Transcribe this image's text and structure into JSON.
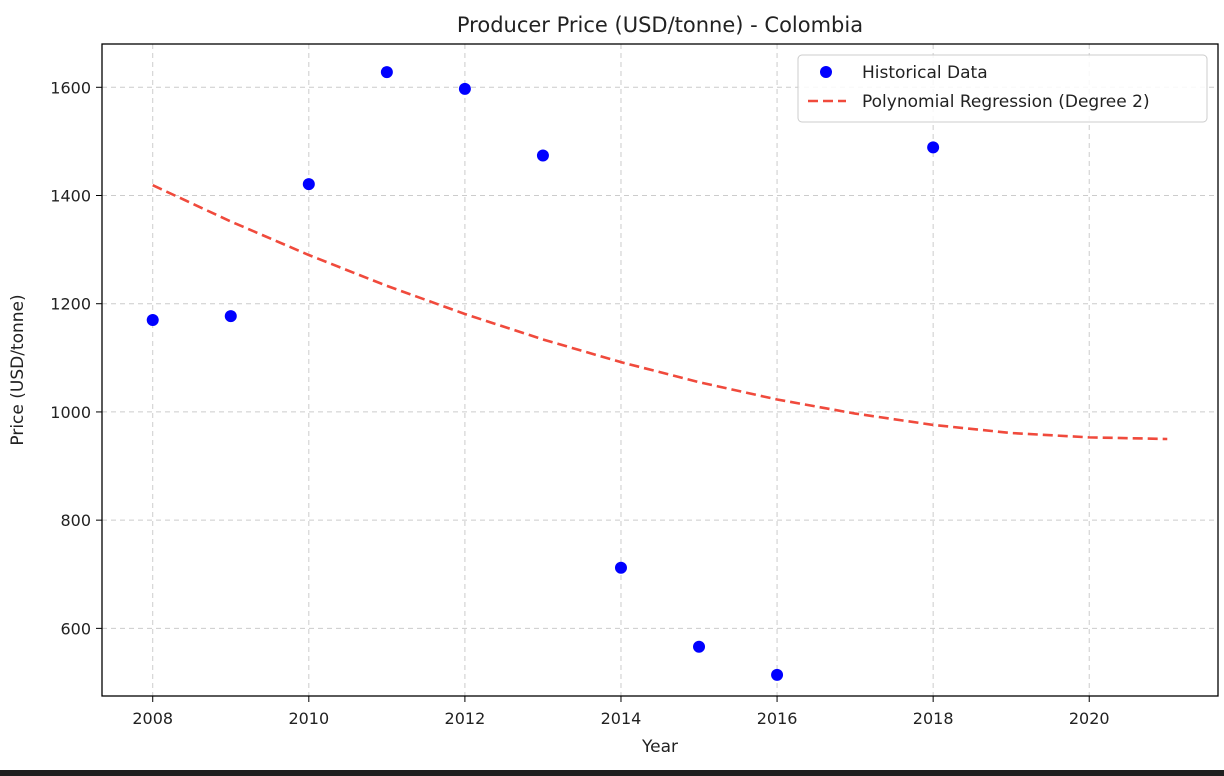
{
  "chart_data": {
    "type": "scatter",
    "title": "Producer Price (USD/tonne) - Colombia",
    "xlabel": "Year",
    "ylabel": "Price (USD/tonne)",
    "xlim": [
      2007.35,
      2021.65
    ],
    "ylim": [
      475,
      1680
    ],
    "xticks": [
      2008,
      2010,
      2012,
      2014,
      2016,
      2018,
      2020
    ],
    "yticks": [
      600,
      800,
      1000,
      1200,
      1400,
      1600
    ],
    "grid": true,
    "legend_position": "top-right",
    "series": [
      {
        "name": "Historical Data",
        "kind": "scatter",
        "color": "#0000ff",
        "x": [
          2008,
          2009,
          2010,
          2011,
          2012,
          2013,
          2014,
          2015,
          2016,
          2018
        ],
        "y": [
          1170,
          1177,
          1421,
          1628,
          1597,
          1474,
          712,
          566,
          514,
          1489
        ]
      },
      {
        "name": "Polynomial Regression (Degree 2)",
        "kind": "line",
        "style": "dashed",
        "color": "#f04a3c",
        "x": [
          2008,
          2009,
          2010,
          2011,
          2012,
          2013,
          2014,
          2015,
          2016,
          2017,
          2018,
          2019,
          2020,
          2021
        ],
        "y": [
          1419,
          1352,
          1290,
          1233,
          1181,
          1134,
          1092,
          1055,
          1023,
          997,
          976,
          961,
          953,
          950
        ]
      }
    ]
  }
}
